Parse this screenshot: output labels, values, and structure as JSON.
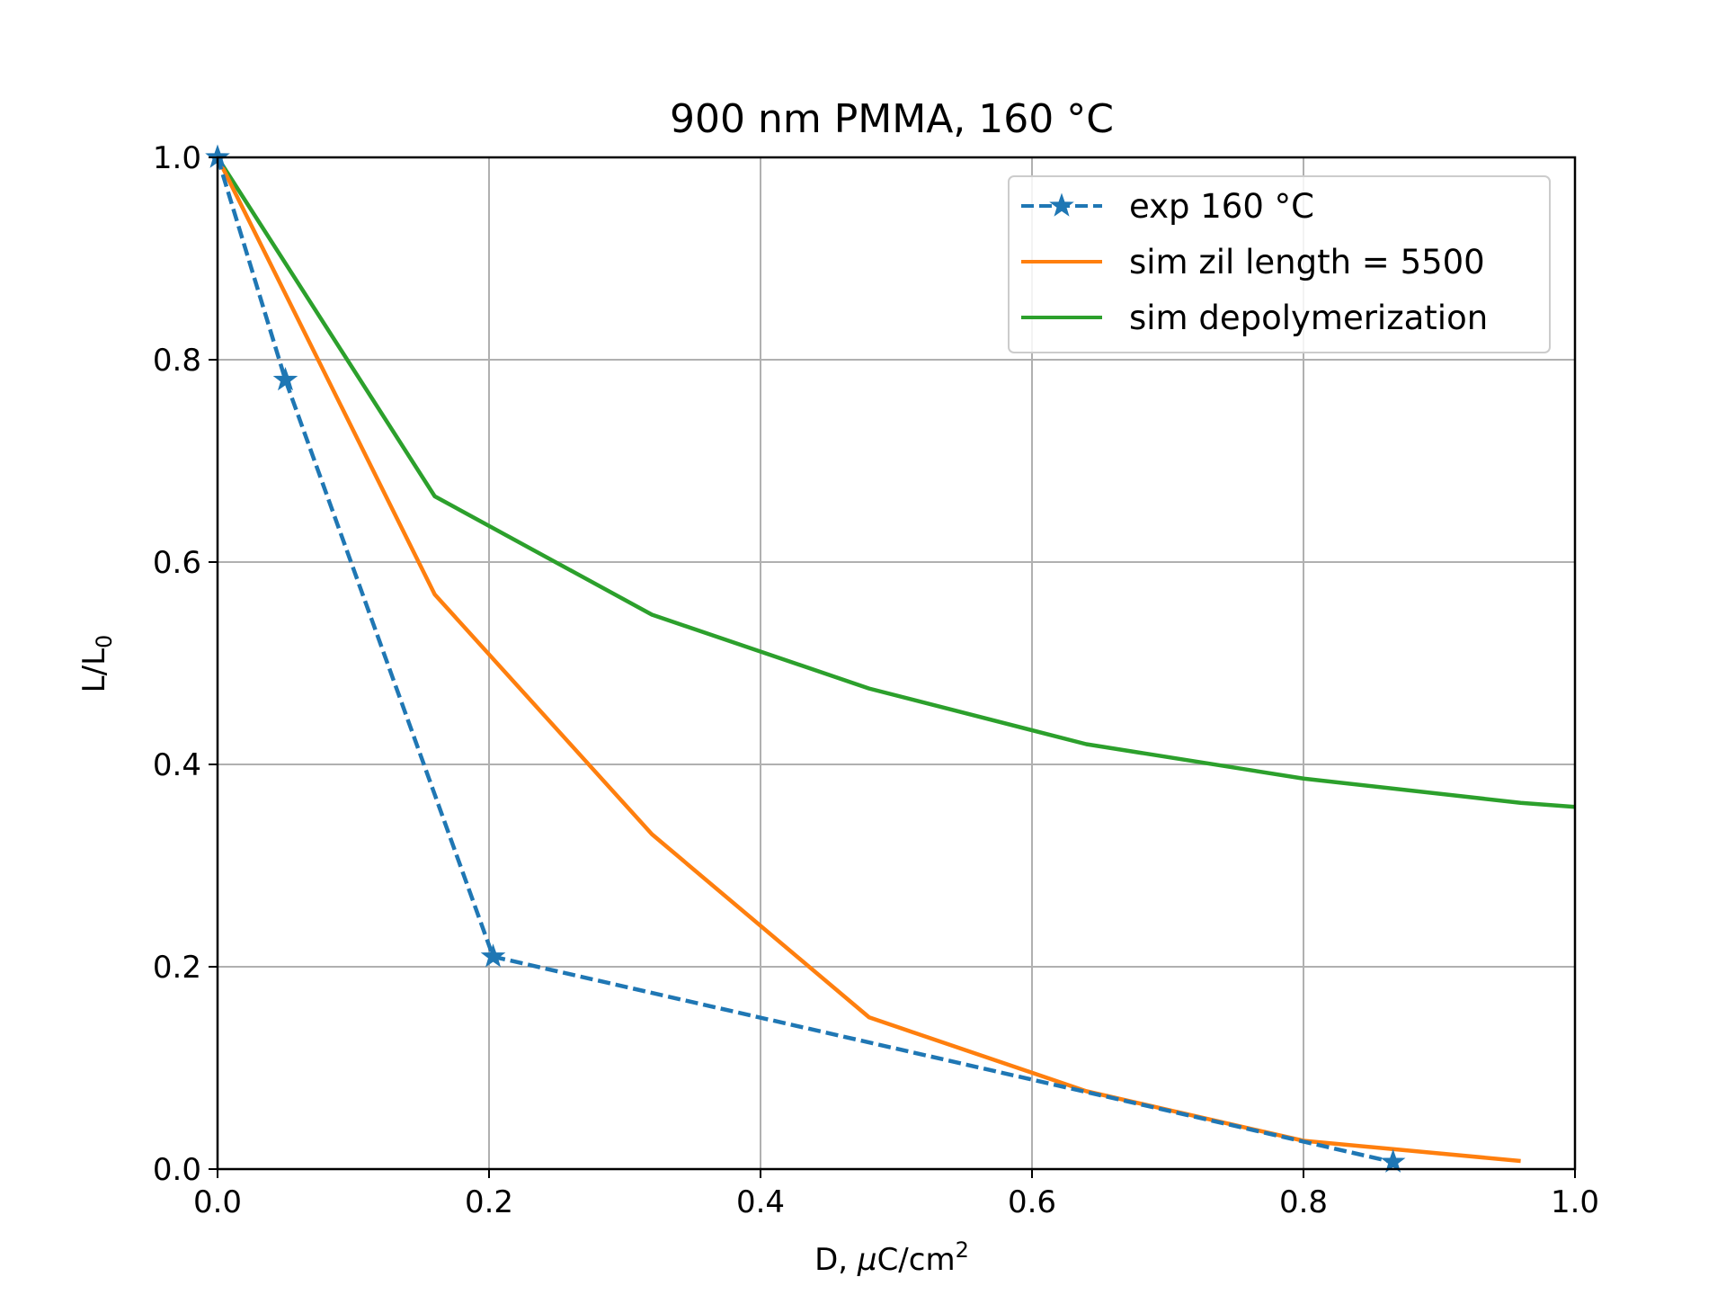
{
  "chart_data": {
    "type": "line",
    "title": "900 nm PMMA, 160 °C",
    "xlabel_main": "D, ",
    "xlabel_mu": "μ",
    "xlabel_unit": "C/cm",
    "xlabel_sup": "2",
    "ylabel_main": "L/L",
    "ylabel_sub": "0",
    "xlim": [
      0.0,
      1.0
    ],
    "ylim": [
      0.0,
      1.0
    ],
    "xticks": [
      "0.0",
      "0.2",
      "0.4",
      "0.6",
      "0.8",
      "1.0"
    ],
    "yticks": [
      "0.0",
      "0.2",
      "0.4",
      "0.6",
      "0.8",
      "1.0"
    ],
    "grid": true,
    "legend_position": "top-right",
    "series": [
      {
        "name": "exp 160 °C",
        "color": "#1f77b4",
        "style": "dashed",
        "marker": "star",
        "x": [
          0.0,
          0.05,
          0.203,
          0.866
        ],
        "y": [
          1.0,
          0.78,
          0.21,
          0.007
        ]
      },
      {
        "name": "sim zil length = 5500",
        "color": "#ff7f0e",
        "style": "solid",
        "marker": "none",
        "x": [
          0.0,
          0.16,
          0.32,
          0.48,
          0.64,
          0.8,
          0.96
        ],
        "y": [
          1.0,
          0.568,
          0.331,
          0.15,
          0.077,
          0.028,
          0.008
        ]
      },
      {
        "name": "sim depolymerization",
        "color": "#2ca02c",
        "style": "solid",
        "marker": "none",
        "x": [
          0.0,
          0.16,
          0.32,
          0.48,
          0.64,
          0.8,
          0.96,
          1.0
        ],
        "y": [
          1.0,
          0.665,
          0.548,
          0.475,
          0.42,
          0.386,
          0.362,
          0.358
        ]
      }
    ]
  }
}
